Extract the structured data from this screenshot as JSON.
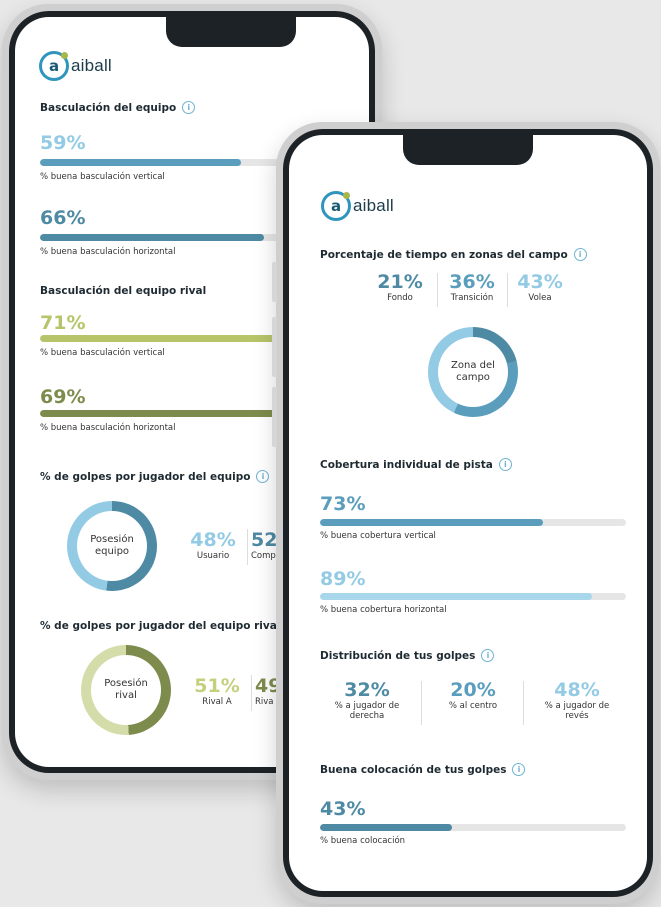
{
  "colors": {
    "teal": "#4e8aa4",
    "light_blue": "#93cbe5",
    "mid_blue": "#5a9dbd",
    "olive": "#7d8c4c",
    "olive_light": "#b7c46a",
    "track": "#e6e6e6"
  },
  "brand": {
    "logo_letter": "a",
    "logo_text": "aiball",
    "logo_icon": "aiball-logo-icon"
  },
  "left_phone": {
    "sections": [
      {
        "title": "Basculación del equipo",
        "metrics": [
          {
            "value": "59%",
            "label": "% buena basculación vertical",
            "progress": 0.59
          },
          {
            "value": "66%",
            "label": "% buena basculación horizontal",
            "progress": 0.66
          }
        ]
      },
      {
        "title": "Basculación del equipo rival",
        "metrics": [
          {
            "value": "71%",
            "label": "% buena basculación vertical",
            "progress": 0.71
          },
          {
            "value": "69%",
            "label": "% buena basculación horizontal",
            "progress": 0.69
          }
        ]
      }
    ],
    "golpes_equipo": {
      "title": "% de golpes por jugador del equipo",
      "donut_label": "Posesión equipo",
      "stats": [
        {
          "value": "48%",
          "label": "Usuario"
        },
        {
          "value": "52",
          "label": "Comp"
        }
      ],
      "share": 0.48
    },
    "golpes_rival": {
      "title": "% de golpes por jugador del equipo rival",
      "donut_label": "Posesión rival",
      "stats": [
        {
          "value": "51%",
          "label": "Rival A"
        },
        {
          "value": "49",
          "label": "Riva"
        }
      ],
      "share": 0.51
    }
  },
  "right_phone": {
    "zonas": {
      "title": "Porcentaje de tiempo en zonas del campo",
      "stats": [
        {
          "value": "21%",
          "label": "Fondo"
        },
        {
          "value": "36%",
          "label": "Transición"
        },
        {
          "value": "43%",
          "label": "Volea"
        }
      ],
      "shares": [
        0.21,
        0.36,
        0.43
      ],
      "donut_label": "Zona del campo"
    },
    "cobertura": {
      "title": "Cobertura individual de pista",
      "metrics": [
        {
          "value": "73%",
          "label": "% buena cobertura vertical",
          "progress": 0.73
        },
        {
          "value": "89%",
          "label": "% buena cobertura horizontal",
          "progress": 0.89
        }
      ]
    },
    "distribucion": {
      "title": "Distribución de tus golpes",
      "stats": [
        {
          "value": "32%",
          "label": "% a jugador de derecha"
        },
        {
          "value": "20%",
          "label": "% al centro"
        },
        {
          "value": "48%",
          "label": "% a jugador de revés"
        }
      ]
    },
    "colocacion": {
      "title": "Buena colocación de tus golpes",
      "metrics": [
        {
          "value": "43%",
          "label": "% buena colocación",
          "progress": 0.43
        }
      ]
    }
  }
}
